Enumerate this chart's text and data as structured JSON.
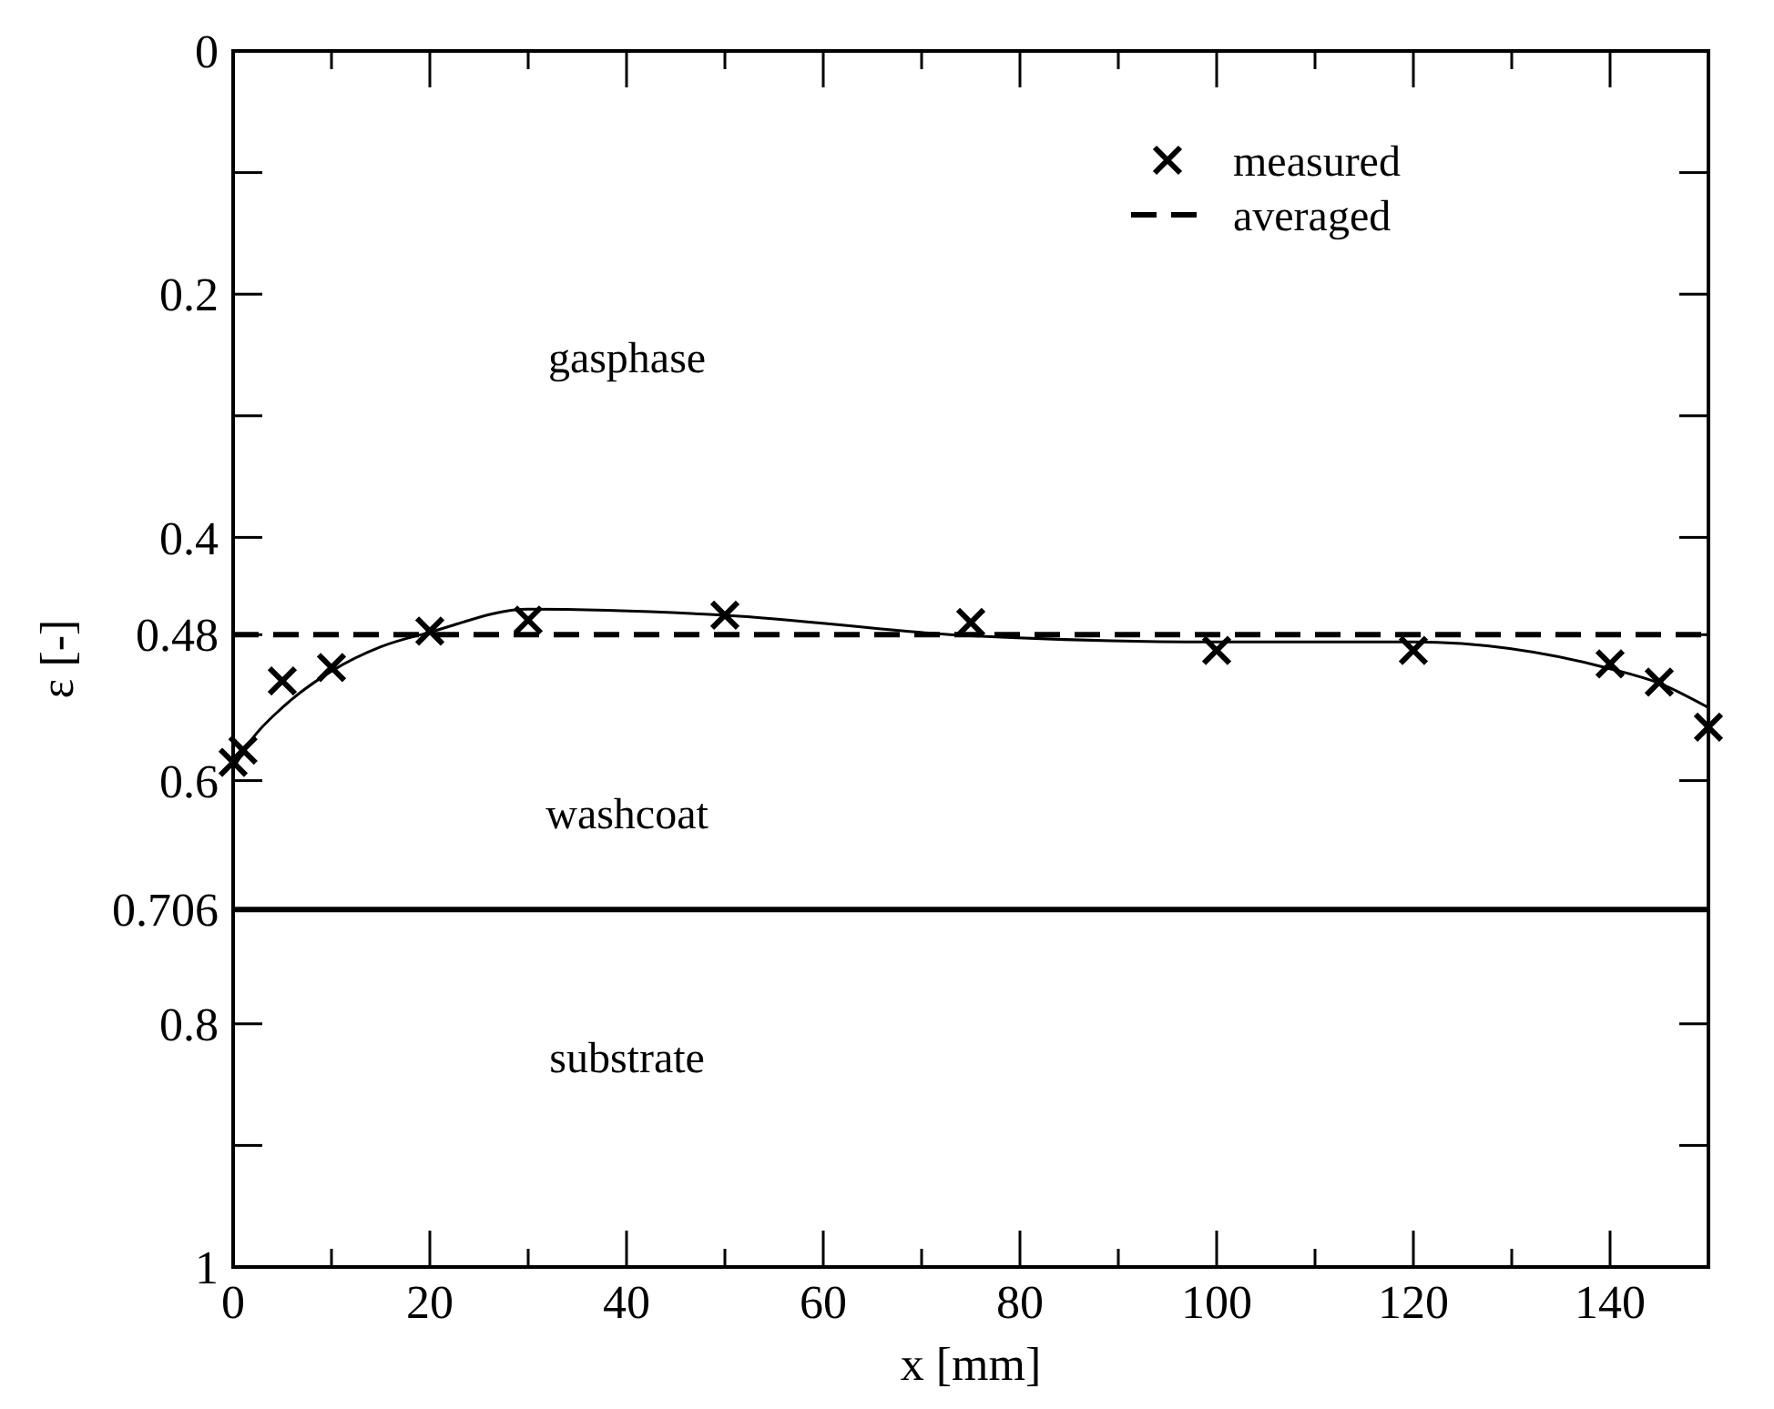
{
  "chart_data": {
    "type": "scatter",
    "xlabel": "x [mm]",
    "ylabel": "ε [-]",
    "xlim": [
      0,
      150
    ],
    "ylim": [
      1,
      0
    ],
    "xticks": [
      0,
      {
        "value": 10,
        "label": null
      },
      20,
      {
        "value": 30,
        "label": null
      },
      40,
      {
        "value": 50,
        "label": null
      },
      60,
      {
        "value": 70,
        "label": null
      },
      80,
      {
        "value": 90,
        "label": null
      },
      100,
      {
        "value": 110,
        "label": null
      },
      120,
      {
        "value": 130,
        "label": null
      },
      140,
      {
        "value": 150,
        "label": null
      }
    ],
    "yticks": [
      0,
      {
        "value": 0.1,
        "label": null
      },
      0.2,
      {
        "value": 0.3,
        "label": null
      },
      0.4,
      0.48,
      0.6,
      0.706,
      0.8,
      {
        "value": 0.9,
        "label": null
      },
      1
    ],
    "legend": "top right",
    "series": [
      {
        "name": "measured",
        "type": "scatter",
        "marker": "cross",
        "color": "#000000",
        "x": [
          0,
          1,
          5,
          10,
          20,
          30,
          50,
          75,
          100,
          120,
          140,
          145,
          150
        ],
        "values": [
          0.585,
          0.575,
          0.518,
          0.507,
          0.477,
          0.468,
          0.464,
          0.47,
          0.493,
          0.493,
          0.504,
          0.519,
          0.556
        ]
      },
      {
        "name": "averaged",
        "type": "line",
        "marker": "none",
        "line_style": "dashed",
        "color": "#000000",
        "x": [
          0,
          150
        ],
        "values": [
          0.48,
          0.48
        ]
      },
      {
        "type": "line",
        "marker": "none",
        "line_style": "solid",
        "color": "#000000",
        "x": [
          0,
          2,
          5,
          10,
          15,
          20,
          30,
          50,
          75,
          100,
          120,
          140,
          145,
          150
        ],
        "values": [
          0.59,
          0.565,
          0.54,
          0.51,
          0.49,
          0.478,
          0.459,
          0.464,
          0.481,
          0.486,
          0.486,
          0.508,
          0.52,
          0.54
        ]
      }
    ],
    "ref_lines": [
      {
        "axis": "y",
        "value": 0.706,
        "color": "#000000",
        "line_style": "solid"
      }
    ],
    "annotations": [
      "gasphase",
      "washcoat",
      "substrate"
    ]
  }
}
